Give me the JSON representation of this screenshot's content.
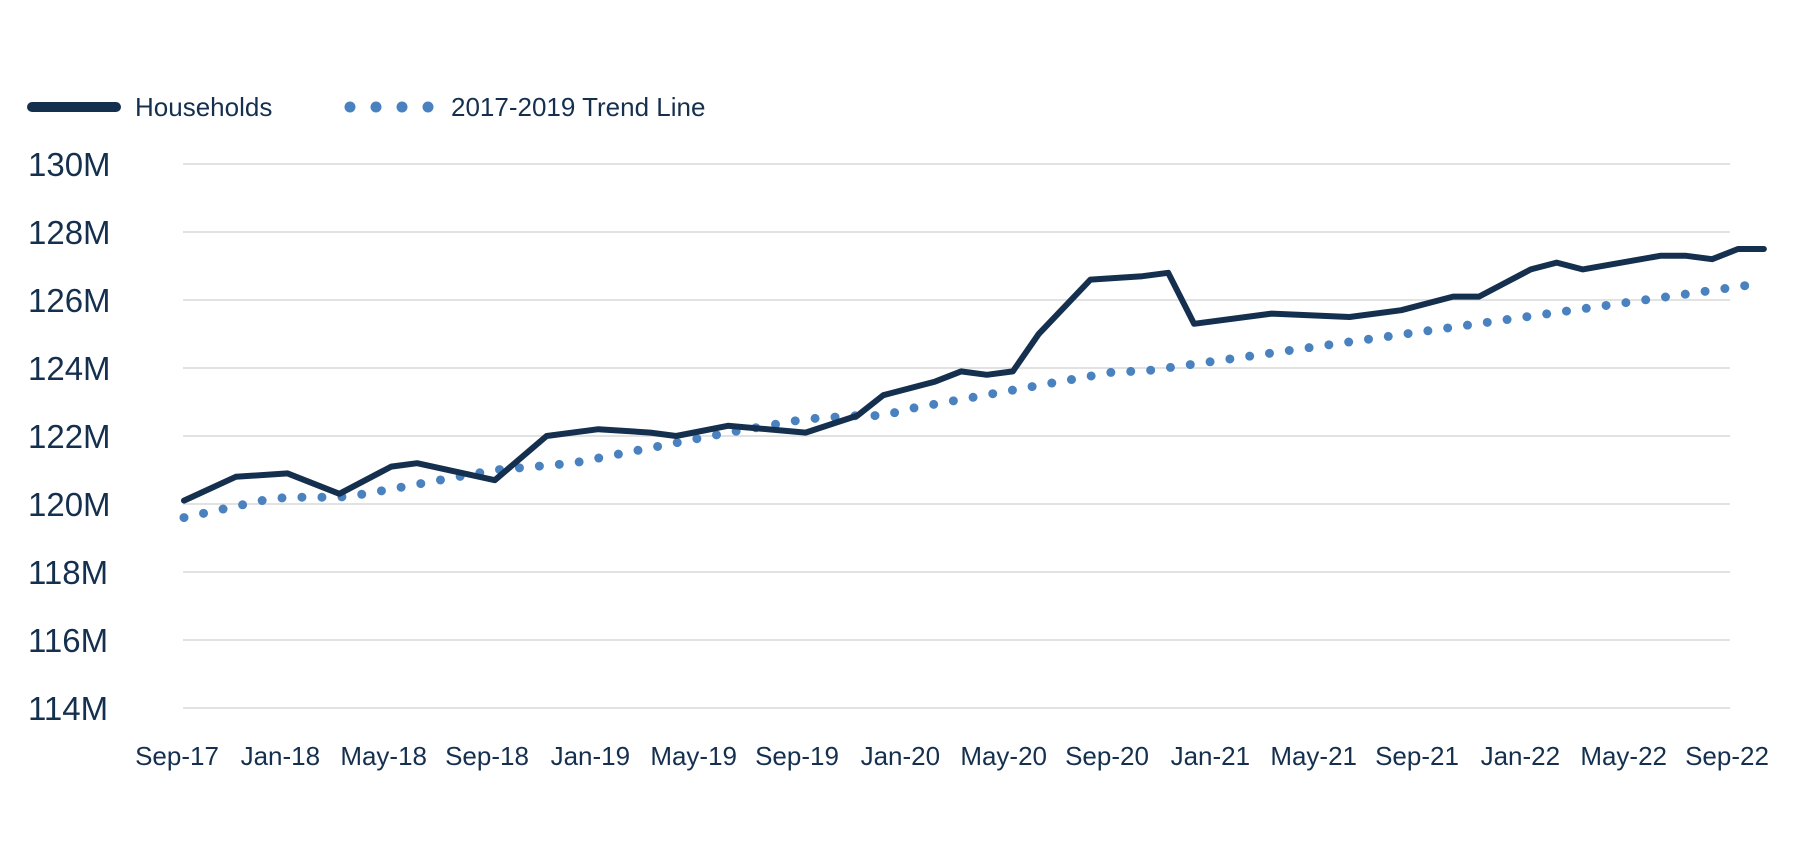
{
  "chart_data": {
    "type": "line",
    "title": "",
    "xlabel": "",
    "ylabel": "",
    "ylim": [
      114,
      130
    ],
    "y_unit_suffix": "M",
    "y_ticks": [
      "114M",
      "116M",
      "118M",
      "120M",
      "122M",
      "124M",
      "126M",
      "128M",
      "130M"
    ],
    "x_tick_labels": [
      "Sep-17",
      "Jan-18",
      "May-18",
      "Sep-18",
      "Jan-19",
      "May-19",
      "Sep-19",
      "Jan-20",
      "May-20",
      "Sep-20",
      "Jan-21",
      "May-21",
      "Sep-21",
      "Jan-22",
      "May-22",
      "Sep-22"
    ],
    "grid": true,
    "legend_position": "top-left",
    "series": [
      {
        "name": "Households",
        "color": "#15304f",
        "style": "solid",
        "points": [
          [
            "2017-09",
            120.1
          ],
          [
            "2017-11",
            120.8
          ],
          [
            "2018-01",
            120.9
          ],
          [
            "2018-03",
            120.3
          ],
          [
            "2018-05",
            121.1
          ],
          [
            "2018-06",
            121.2
          ],
          [
            "2018-09",
            120.7
          ],
          [
            "2018-11",
            122.0
          ],
          [
            "2019-01",
            122.2
          ],
          [
            "2019-03",
            122.1
          ],
          [
            "2019-04",
            122.0
          ],
          [
            "2019-06",
            122.3
          ],
          [
            "2019-09",
            122.1
          ],
          [
            "2019-11",
            122.6
          ],
          [
            "2019-12",
            123.2
          ],
          [
            "2020-02",
            123.6
          ],
          [
            "2020-03",
            123.9
          ],
          [
            "2020-04",
            123.8
          ],
          [
            "2020-05",
            123.9
          ],
          [
            "2020-06",
            125.0
          ],
          [
            "2020-08",
            126.6
          ],
          [
            "2020-10",
            126.7
          ],
          [
            "2020-11",
            126.8
          ],
          [
            "2020-12",
            125.3
          ],
          [
            "2021-03",
            125.6
          ],
          [
            "2021-06",
            125.5
          ],
          [
            "2021-08",
            125.7
          ],
          [
            "2021-10",
            126.1
          ],
          [
            "2021-11",
            126.1
          ],
          [
            "2021-12",
            126.5
          ],
          [
            "2022-01",
            126.9
          ],
          [
            "2022-02",
            127.1
          ],
          [
            "2022-03",
            126.9
          ],
          [
            "2022-06",
            127.3
          ],
          [
            "2022-07",
            127.3
          ],
          [
            "2022-08",
            127.2
          ],
          [
            "2022-09",
            127.5
          ],
          [
            "2022-10",
            127.5
          ]
        ]
      },
      {
        "name": "2017-2019 Trend Line",
        "color": "#4a82c0",
        "style": "dotted",
        "points": [
          [
            "2017-09",
            119.6
          ],
          [
            "2017-12",
            120.1
          ],
          [
            "2018-01",
            120.2
          ],
          [
            "2018-03",
            120.2
          ],
          [
            "2018-04",
            120.3
          ],
          [
            "2018-09",
            121.0
          ],
          [
            "2018-12",
            121.2
          ],
          [
            "2019-06",
            122.1
          ],
          [
            "2019-09",
            122.5
          ],
          [
            "2019-11",
            122.6
          ],
          [
            "2019-12",
            122.6
          ],
          [
            "2020-01",
            122.8
          ],
          [
            "2020-09",
            123.9
          ],
          [
            "2020-10",
            123.9
          ],
          [
            "2022-10",
            126.5
          ]
        ]
      }
    ]
  }
}
